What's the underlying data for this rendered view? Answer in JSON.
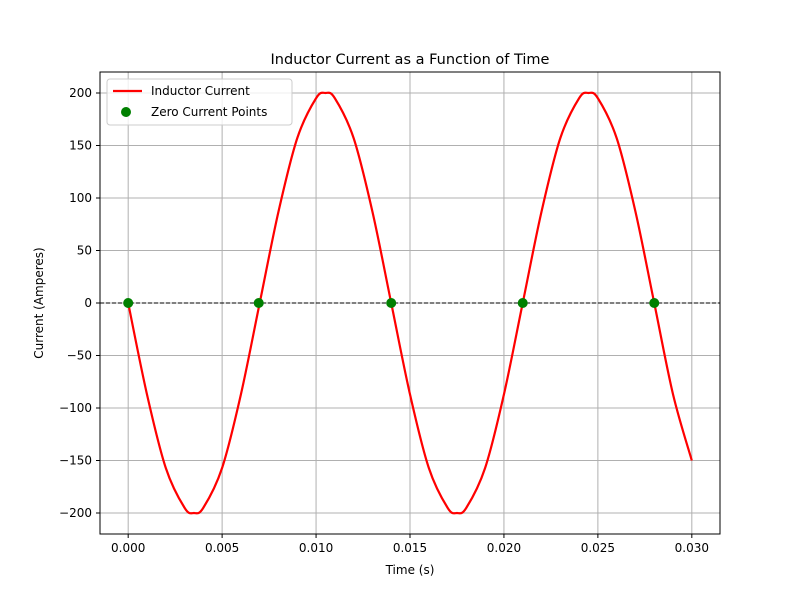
{
  "chart_data": {
    "type": "line",
    "title": "Inductor Current as a Function of Time",
    "xlabel": "Time (s)",
    "ylabel": "Current (Amperes)",
    "xlim": [
      -0.0015,
      0.0315
    ],
    "ylim": [
      -220,
      220
    ],
    "grid": true,
    "legend_position": "top-left",
    "x_ticks": [
      0.0,
      0.005,
      0.01,
      0.015,
      0.02,
      0.025,
      0.03
    ],
    "x_tick_labels": [
      "0.000",
      "0.005",
      "0.010",
      "0.015",
      "0.020",
      "0.025",
      "0.030"
    ],
    "y_ticks": [
      -200,
      -150,
      -100,
      -50,
      0,
      50,
      100,
      150,
      200
    ],
    "y_tick_labels": [
      "−200",
      "−150",
      "−100",
      "−50",
      "0",
      "50",
      "100",
      "150",
      "200"
    ],
    "reference_line_y": 0,
    "series": [
      {
        "name": "Inductor Current",
        "kind": "line",
        "color": "#ff0000",
        "x": [
          0.0,
          0.001,
          0.002,
          0.003,
          0.0035,
          0.004,
          0.005,
          0.006,
          0.007,
          0.008,
          0.009,
          0.01,
          0.0105,
          0.011,
          0.012,
          0.013,
          0.014,
          0.015,
          0.016,
          0.017,
          0.0175,
          0.018,
          0.019,
          0.02,
          0.021,
          0.022,
          0.023,
          0.024,
          0.0245,
          0.025,
          0.026,
          0.027,
          0.028,
          0.029,
          0.03
        ],
        "y": [
          0,
          -87,
          -157,
          -195,
          -200,
          -195,
          -157,
          -87,
          0,
          87,
          157,
          195,
          200,
          195,
          157,
          87,
          0,
          -87,
          -157,
          -195,
          -200,
          -195,
          -157,
          -87,
          0,
          87,
          157,
          195,
          200,
          195,
          157,
          87,
          0,
          -87,
          -150
        ]
      },
      {
        "name": "Zero Current Points",
        "kind": "scatter",
        "color": "#008000",
        "x": [
          0.0,
          0.00695,
          0.014,
          0.021,
          0.028
        ],
        "y": [
          0,
          0,
          0,
          0,
          0
        ]
      }
    ]
  }
}
